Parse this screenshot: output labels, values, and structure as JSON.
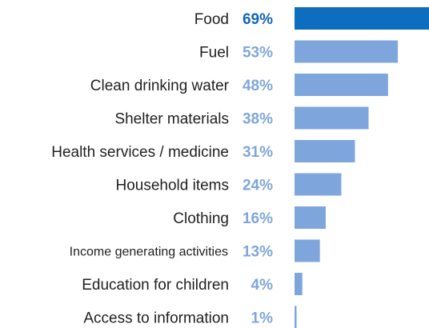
{
  "chart_data": {
    "type": "bar",
    "orientation": "horizontal",
    "categories": [
      "Food",
      "Fuel",
      "Clean drinking water",
      "Shelter materials",
      "Health services / medicine",
      "Household items",
      "Clothing",
      "Income generating activities",
      "Education for children",
      "Access to information"
    ],
    "values": [
      69,
      53,
      48,
      38,
      31,
      24,
      16,
      13,
      4,
      1
    ],
    "value_labels": [
      "69%",
      "53%",
      "48%",
      "38%",
      "31%",
      "24%",
      "16%",
      "13%",
      "4%",
      "1%"
    ],
    "xlim": [
      0,
      69
    ],
    "highlight_index": 0,
    "colors": {
      "highlight_bar": "#0d6ebf",
      "bar": "#7ea6dc",
      "highlight_label": "#1166b8",
      "label": "#7ea6dc",
      "text": "#231f20"
    }
  }
}
